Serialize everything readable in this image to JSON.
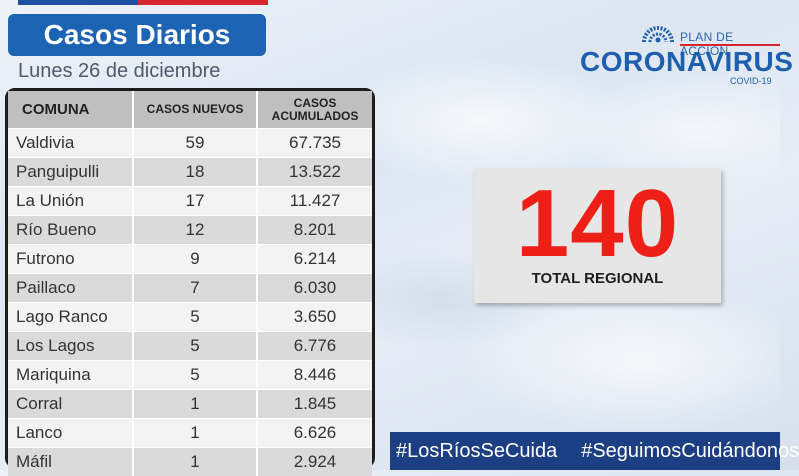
{
  "header": {
    "title": "Casos Diarios",
    "date": "Lunes 26 de diciembre"
  },
  "logo": {
    "plan": "PLAN DE ACCIÓN",
    "name": "CORONAVIRUS",
    "sub": "COVID-19"
  },
  "table": {
    "headers": {
      "comuna": "COMUNA",
      "nuevos": "CASOS NUEVOS",
      "acumulados_1": "CASOS",
      "acumulados_2": "ACUMULADOS"
    },
    "rows": [
      {
        "comuna": "Valdivia",
        "nuevos": "59",
        "acumulados": "67.735"
      },
      {
        "comuna": "Panguipulli",
        "nuevos": "18",
        "acumulados": "13.522"
      },
      {
        "comuna": "La Unión",
        "nuevos": "17",
        "acumulados": "11.427"
      },
      {
        "comuna": "Río Bueno",
        "nuevos": "12",
        "acumulados": "8.201"
      },
      {
        "comuna": "Futrono",
        "nuevos": "9",
        "acumulados": "6.214"
      },
      {
        "comuna": "Paillaco",
        "nuevos": "7",
        "acumulados": "6.030"
      },
      {
        "comuna": "Lago Ranco",
        "nuevos": "5",
        "acumulados": "3.650"
      },
      {
        "comuna": "Los Lagos",
        "nuevos": "5",
        "acumulados": "6.776"
      },
      {
        "comuna": "Mariquina",
        "nuevos": "5",
        "acumulados": "8.446"
      },
      {
        "comuna": "Corral",
        "nuevos": "1",
        "acumulados": "1.845"
      },
      {
        "comuna": "Lanco",
        "nuevos": "1",
        "acumulados": "6.626"
      },
      {
        "comuna": "Máfil",
        "nuevos": "1",
        "acumulados": "2.924"
      }
    ]
  },
  "total": {
    "value": "140",
    "label": "TOTAL REGIONAL"
  },
  "footer": {
    "hashtag_1": "#LosRíosSeCuida",
    "hashtag_2": "#SeguimosCuidándonos"
  },
  "colors": {
    "title_blue": "#1d63b3",
    "total_red": "#ee1f17",
    "footer_navy": "#1b3f82"
  },
  "icons": {
    "logo": "crown-arc-icon"
  }
}
